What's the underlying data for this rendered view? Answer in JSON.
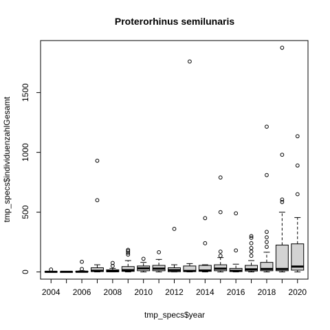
{
  "chart_data": {
    "type": "boxplot",
    "title": "Proterorhinus semilunaris",
    "xlabel": "tmp_specs$year",
    "ylabel": "tmp_specs$individuenzahlGesamt",
    "x_tick_labels": [
      "2004",
      "2006",
      "2008",
      "2010",
      "2012",
      "2014",
      "2016",
      "2018",
      "2020"
    ],
    "y_ticks": [
      0,
      500,
      1000,
      1500
    ],
    "ylim": [
      -60,
      1935
    ],
    "grid": false,
    "box_fill": "#d3d3d3",
    "categories": [
      "2004",
      "2005",
      "2006",
      "2007",
      "2008",
      "2009",
      "2010",
      "2011",
      "2012",
      "2013",
      "2014",
      "2015",
      "2016",
      "2017",
      "2018",
      "2019",
      "2020"
    ],
    "boxes": [
      {
        "year": "2004",
        "whisker_low": 0,
        "q1": 0,
        "median": 1,
        "q3": 3,
        "whisker_high": 5,
        "outliers": [
          20
        ]
      },
      {
        "year": "2005",
        "whisker_low": 0,
        "q1": 0,
        "median": 1,
        "q3": 2,
        "whisker_high": 3,
        "outliers": []
      },
      {
        "year": "2006",
        "whisker_low": 0,
        "q1": 0,
        "median": 2,
        "q3": 5,
        "whisker_high": 10,
        "outliers": [
          25,
          85
        ]
      },
      {
        "year": "2007",
        "whisker_low": 0,
        "q1": 3,
        "median": 10,
        "q3": 35,
        "whisker_high": 60,
        "outliers": [
          600,
          930
        ]
      },
      {
        "year": "2008",
        "whisker_low": 0,
        "q1": 2,
        "median": 6,
        "q3": 18,
        "whisker_high": 30,
        "outliers": [
          50,
          75
        ]
      },
      {
        "year": "2009",
        "whisker_low": 0,
        "q1": 5,
        "median": 15,
        "q3": 45,
        "whisker_high": 95,
        "outliers": [
          145,
          160,
          175,
          185
        ]
      },
      {
        "year": "2010",
        "whisker_low": 0,
        "q1": 10,
        "median": 30,
        "q3": 50,
        "whisker_high": 80,
        "outliers": [
          110
        ]
      },
      {
        "year": "2011",
        "whisker_low": 0,
        "q1": 10,
        "median": 28,
        "q3": 55,
        "whisker_high": 105,
        "outliers": [
          165
        ]
      },
      {
        "year": "2012",
        "whisker_low": 0,
        "q1": 2,
        "median": 15,
        "q3": 35,
        "whisker_high": 60,
        "outliers": [
          360
        ]
      },
      {
        "year": "2013",
        "whisker_low": 0,
        "q1": 3,
        "median": 8,
        "q3": 50,
        "whisker_high": 70,
        "outliers": [
          1760
        ]
      },
      {
        "year": "2014",
        "whisker_low": 0,
        "q1": 5,
        "median": 12,
        "q3": 55,
        "whisker_high": 60,
        "outliers": [
          240,
          450
        ]
      },
      {
        "year": "2015",
        "whisker_low": 0,
        "q1": 10,
        "median": 28,
        "q3": 60,
        "whisker_high": 120,
        "outliers": [
          135,
          170,
          500,
          790
        ]
      },
      {
        "year": "2016",
        "whisker_low": 0,
        "q1": 3,
        "median": 10,
        "q3": 30,
        "whisker_high": 65,
        "outliers": [
          180,
          490
        ]
      },
      {
        "year": "2017",
        "whisker_low": 0,
        "q1": 8,
        "median": 22,
        "q3": 55,
        "whisker_high": 95,
        "outliers": [
          135,
          170,
          200,
          240,
          285,
          300
        ]
      },
      {
        "year": "2018",
        "whisker_low": 0,
        "q1": 10,
        "median": 25,
        "q3": 80,
        "whisker_high": 165,
        "outliers": [
          210,
          250,
          290,
          335,
          810,
          1215
        ]
      },
      {
        "year": "2019",
        "whisker_low": 0,
        "q1": 10,
        "median": 25,
        "q3": 225,
        "whisker_high": 500,
        "outliers": [
          585,
          605,
          980,
          1875
        ]
      },
      {
        "year": "2020",
        "whisker_low": 0,
        "q1": 15,
        "median": 45,
        "q3": 235,
        "whisker_high": 455,
        "outliers": [
          650,
          890,
          1135
        ]
      }
    ]
  }
}
